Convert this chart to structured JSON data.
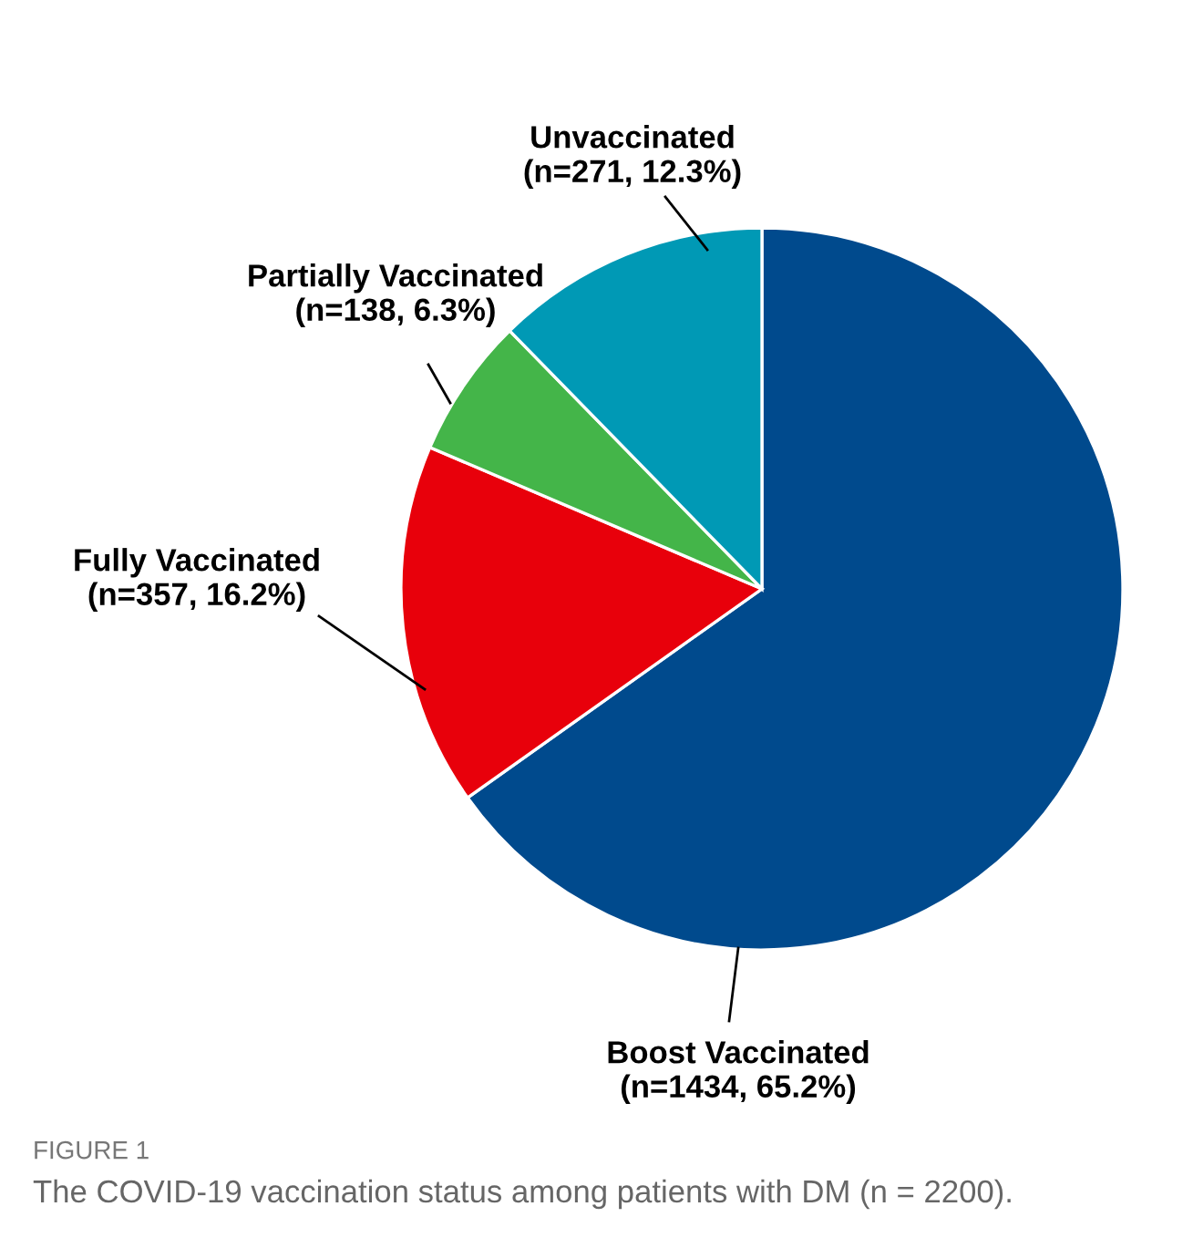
{
  "chart_data": {
    "type": "pie",
    "categories": [
      "Boost Vaccinated",
      "Fully Vaccinated",
      "Partially Vaccinated",
      "Unvaccinated"
    ],
    "values": [
      1434,
      357,
      138,
      271
    ],
    "value_labels": [
      "(n=1434, 65.2%)",
      "(n=357, 16.2%)",
      "(n=138, 6.3%)",
      "(n=271, 12.3%)"
    ],
    "colors": [
      "#004a8d",
      "#e8000b",
      "#44b549",
      "#0099b5"
    ],
    "annotations": [
      "FIGURE 1",
      "The COVID-19 vaccination status among patients with DM (n = 2200)."
    ]
  }
}
